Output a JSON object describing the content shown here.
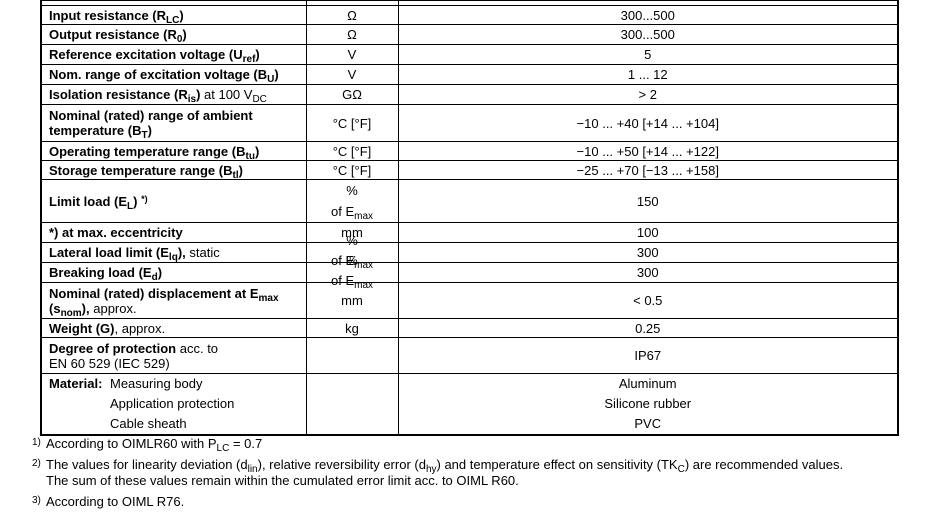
{
  "table": {
    "rows": [
      {
        "param": [
          "Input resistance (R",
          "LC",
          ")"
        ],
        "unit": "Ω",
        "value": "300...500"
      },
      {
        "param": [
          "Output resistance (R",
          "0",
          ")"
        ],
        "unit": "Ω",
        "value": "300...500"
      },
      {
        "param": [
          "Reference excitation voltage (U",
          "ref",
          ")"
        ],
        "unit": "V",
        "value": "5"
      },
      {
        "param": [
          "Nom. range of excitation voltage (B",
          "U",
          ")"
        ],
        "unit": "V",
        "value": "1 ... 12"
      },
      {
        "param": [
          "Isolation resistance (R",
          "is",
          ")",
          " at 100 V",
          "DC"
        ],
        "unit": "GΩ",
        "value": "> 2"
      },
      {
        "param": [
          "Nominal (rated) range of ambient temperature (B",
          "T",
          ")"
        ],
        "unit": "°C [°F]",
        "value": "−10 ... +40 [+14 ... +104]"
      },
      {
        "param": [
          "Operating temperature range (B",
          "tu",
          ")"
        ],
        "unit": "°C [°F]",
        "value": "−10 ... +50 [+14 ... +122]"
      },
      {
        "param": [
          "Storage temperature range (B",
          "tl",
          ")"
        ],
        "unit": "°C [°F]",
        "value": "−25 ... +70 [−13 ... +158]"
      },
      {
        "param": [
          "Limit load (E",
          "L",
          ") ",
          "*)"
        ],
        "unit": [
          "%",
          "of E",
          "max"
        ],
        "value": "150"
      },
      {
        "param": [
          "*)",
          " at max. eccentricity"
        ],
        "unit": "mm",
        "value": "100"
      },
      {
        "param": [
          "Lateral load limit (E",
          "lq",
          "),",
          " static"
        ],
        "unit": [
          "%",
          "of E",
          "max"
        ],
        "value": "300"
      },
      {
        "param": [
          "Breaking load (E",
          "d",
          ")"
        ],
        "unit": [
          "%",
          "of E",
          "max"
        ],
        "value": "300"
      },
      {
        "param": [
          "Nominal (rated) displacement at E",
          "max",
          " (s",
          "nom",
          "),",
          " approx."
        ],
        "unit": "mm",
        "value": "< 0.5"
      },
      {
        "param": [
          "Weight (G)",
          ", approx."
        ],
        "unit": "kg",
        "value": "0.25"
      },
      {
        "param": [
          "Degree of protection",
          " acc. to",
          "EN 60 529 (IEC 529)"
        ],
        "value": "IP67"
      }
    ],
    "material": {
      "label": "Material:",
      "items": [
        [
          "Measuring body",
          "Aluminum"
        ],
        [
          "Application protection",
          "Silicone rubber"
        ],
        [
          "Cable sheath",
          "PVC"
        ]
      ]
    }
  },
  "footnotes": [
    [
      "1)",
      "According to OIMLR60 with P",
      "LC",
      " = 0.7"
    ],
    [
      "2)",
      "The values for linearity deviation (d",
      "lin",
      "), relative reversibility error (d",
      "hy",
      ") and temperature effect on sensitivity (TK",
      "C",
      ") are recommended values.",
      "The sum of these values remain within the cumulated error limit acc. to OIML R60."
    ],
    [
      "3)",
      "According to OIML R76."
    ]
  ]
}
